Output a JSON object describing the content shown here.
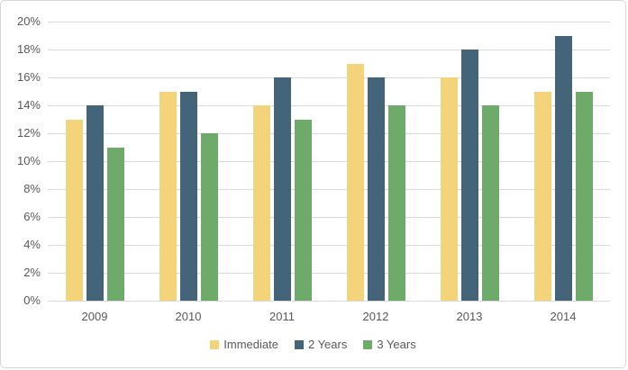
{
  "chart_data": {
    "type": "bar",
    "title": "",
    "xlabel": "",
    "ylabel": "",
    "categories": [
      "2009",
      "2010",
      "2011",
      "2012",
      "2013",
      "2014"
    ],
    "series": [
      {
        "name": "Immediate",
        "color": "#F4D47B",
        "values": [
          13,
          15,
          14,
          17,
          16,
          15
        ]
      },
      {
        "name": "2 Years",
        "color": "#44647A",
        "values": [
          14,
          15,
          16,
          16,
          18,
          19
        ]
      },
      {
        "name": "3 Years",
        "color": "#6EAB6A",
        "values": [
          11,
          12,
          13,
          14,
          14,
          15
        ]
      }
    ],
    "ylim": [
      0,
      20
    ],
    "ytick_step": 2,
    "ytick_labels": [
      "0%",
      "2%",
      "4%",
      "6%",
      "8%",
      "10%",
      "12%",
      "14%",
      "16%",
      "18%",
      "20%"
    ],
    "grid": true,
    "legend_position": "bottom",
    "legend_labels": [
      "Immediate",
      "2 Years",
      "3 Years"
    ]
  },
  "style": {
    "gridline_color": "#d9d9d9",
    "text_color": "#595959",
    "frame_border_color": "#d7d7d7",
    "background_color": "#ffffff"
  }
}
